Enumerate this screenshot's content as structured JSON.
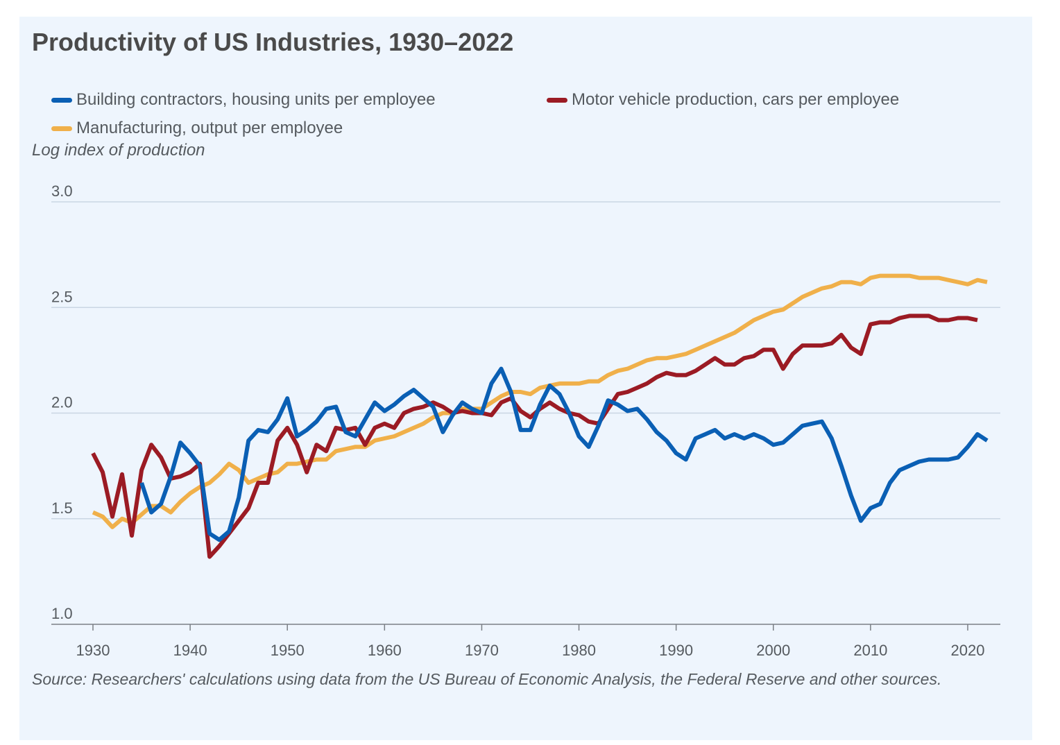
{
  "chart_data": {
    "type": "line",
    "title": "Productivity of US Industries, 1930–2022",
    "ylabel": "Log index of production",
    "xlabel": "",
    "source": "Source: Researchers' calculations using data from the US Bureau of Economic Analysis, the Federal Reserve and other sources.",
    "xlim": [
      1930,
      2022
    ],
    "ylim": [
      1.0,
      3.0
    ],
    "x_ticks": [
      1930,
      1940,
      1950,
      1960,
      1970,
      1980,
      1990,
      2000,
      2010,
      2020
    ],
    "x_tick_labels": [
      "1930",
      "1940",
      "1950",
      "1960",
      "1970",
      "1980",
      "1990",
      "2000",
      "2010",
      "2020"
    ],
    "y_ticks": [
      1.0,
      1.5,
      2.0,
      2.5,
      3.0
    ],
    "y_tick_labels": [
      "1.0",
      "1.5",
      "2.0",
      "2.5",
      "3.0"
    ],
    "grid": "horizontal",
    "legend_position": "top",
    "series": [
      {
        "name": "Building contractors, housing units per employee",
        "color": "#0a5fb4",
        "x": [
          1935,
          1936,
          1937,
          1938,
          1939,
          1940,
          1941,
          1942,
          1943,
          1944,
          1945,
          1946,
          1947,
          1948,
          1949,
          1950,
          1951,
          1952,
          1953,
          1954,
          1955,
          1956,
          1957,
          1958,
          1959,
          1960,
          1961,
          1962,
          1963,
          1964,
          1965,
          1966,
          1967,
          1968,
          1969,
          1970,
          1971,
          1972,
          1973,
          1974,
          1975,
          1976,
          1977,
          1978,
          1979,
          1980,
          1981,
          1982,
          1983,
          1984,
          1985,
          1986,
          1987,
          1988,
          1989,
          1990,
          1991,
          1992,
          1993,
          1994,
          1995,
          1996,
          1997,
          1998,
          1999,
          2000,
          2001,
          2002,
          2003,
          2004,
          2005,
          2006,
          2007,
          2008,
          2009,
          2010,
          2011,
          2012,
          2013,
          2014,
          2015,
          2016,
          2017,
          2018,
          2019,
          2020,
          2021,
          2022
        ],
        "y": [
          1.67,
          1.53,
          1.57,
          1.7,
          1.86,
          1.81,
          1.75,
          1.43,
          1.4,
          1.44,
          1.6,
          1.87,
          1.92,
          1.91,
          1.97,
          2.07,
          1.89,
          1.92,
          1.96,
          2.02,
          2.03,
          1.91,
          1.89,
          1.97,
          2.05,
          2.01,
          2.04,
          2.08,
          2.11,
          2.07,
          2.03,
          1.91,
          1.99,
          2.05,
          2.02,
          2.0,
          2.14,
          2.21,
          2.1,
          1.92,
          1.92,
          2.04,
          2.13,
          2.09,
          2.0,
          1.89,
          1.84,
          1.94,
          2.06,
          2.04,
          2.01,
          2.02,
          1.97,
          1.91,
          1.87,
          1.81,
          1.78,
          1.88,
          1.9,
          1.92,
          1.88,
          1.9,
          1.88,
          1.9,
          1.88,
          1.85,
          1.86,
          1.9,
          1.94,
          1.95,
          1.96,
          1.88,
          1.75,
          1.61,
          1.49,
          1.55,
          1.57,
          1.67,
          1.73,
          1.75,
          1.77,
          1.78,
          1.78,
          1.78,
          1.79,
          1.84,
          1.9,
          1.87
        ]
      },
      {
        "name": "Motor vehicle production, cars per employee",
        "color": "#9b1b24",
        "x": [
          1930,
          1931,
          1932,
          1933,
          1934,
          1935,
          1936,
          1937,
          1938,
          1939,
          1940,
          1941,
          1942,
          1943,
          1944,
          1945,
          1946,
          1947,
          1948,
          1949,
          1950,
          1951,
          1952,
          1953,
          1954,
          1955,
          1956,
          1957,
          1958,
          1959,
          1960,
          1961,
          1962,
          1963,
          1964,
          1965,
          1966,
          1967,
          1968,
          1969,
          1970,
          1971,
          1972,
          1973,
          1974,
          1975,
          1976,
          1977,
          1978,
          1979,
          1980,
          1981,
          1982,
          1983,
          1984,
          1985,
          1986,
          1987,
          1988,
          1989,
          1990,
          1991,
          1992,
          1993,
          1994,
          1995,
          1996,
          1997,
          1998,
          1999,
          2000,
          2001,
          2002,
          2003,
          2004,
          2005,
          2006,
          2007,
          2008,
          2009,
          2010,
          2011,
          2012,
          2013,
          2014,
          2015,
          2016,
          2017,
          2018,
          2019,
          2020,
          2021
        ],
        "y": [
          1.81,
          1.72,
          1.51,
          1.71,
          1.42,
          1.73,
          1.85,
          1.79,
          1.69,
          1.7,
          1.72,
          1.76,
          1.32,
          1.37,
          1.43,
          1.49,
          1.55,
          1.67,
          1.67,
          1.87,
          1.93,
          1.85,
          1.72,
          1.85,
          1.82,
          1.93,
          1.92,
          1.93,
          1.85,
          1.93,
          1.95,
          1.93,
          2.0,
          2.02,
          2.03,
          2.05,
          2.03,
          2.0,
          2.01,
          2.0,
          2.0,
          1.99,
          2.05,
          2.07,
          2.01,
          1.98,
          2.02,
          2.05,
          2.02,
          2.0,
          1.99,
          1.96,
          1.95,
          2.02,
          2.09,
          2.1,
          2.12,
          2.14,
          2.17,
          2.19,
          2.18,
          2.18,
          2.2,
          2.23,
          2.26,
          2.23,
          2.23,
          2.26,
          2.27,
          2.3,
          2.3,
          2.21,
          2.28,
          2.32,
          2.32,
          2.32,
          2.33,
          2.37,
          2.31,
          2.28,
          2.42,
          2.43,
          2.43,
          2.45,
          2.46,
          2.46,
          2.46,
          2.44,
          2.44,
          2.45,
          2.45,
          2.44
        ]
      },
      {
        "name": "Manufacturing, output per employee",
        "color": "#f0b04a",
        "x": [
          1930,
          1931,
          1932,
          1933,
          1934,
          1935,
          1936,
          1937,
          1938,
          1939,
          1940,
          1941,
          1942,
          1943,
          1944,
          1945,
          1946,
          1947,
          1948,
          1949,
          1950,
          1951,
          1952,
          1953,
          1954,
          1955,
          1956,
          1957,
          1958,
          1959,
          1960,
          1961,
          1962,
          1963,
          1964,
          1965,
          1966,
          1967,
          1968,
          1969,
          1970,
          1971,
          1972,
          1973,
          1974,
          1975,
          1976,
          1977,
          1978,
          1979,
          1980,
          1981,
          1982,
          1983,
          1984,
          1985,
          1986,
          1987,
          1988,
          1989,
          1990,
          1991,
          1992,
          1993,
          1994,
          1995,
          1996,
          1997,
          1998,
          1999,
          2000,
          2001,
          2002,
          2003,
          2004,
          2005,
          2006,
          2007,
          2008,
          2009,
          2010,
          2011,
          2012,
          2013,
          2014,
          2015,
          2016,
          2017,
          2018,
          2019,
          2020,
          2021,
          2022
        ],
        "y": [
          1.53,
          1.51,
          1.46,
          1.5,
          1.48,
          1.52,
          1.56,
          1.56,
          1.53,
          1.58,
          1.62,
          1.65,
          1.67,
          1.71,
          1.76,
          1.73,
          1.67,
          1.69,
          1.71,
          1.72,
          1.76,
          1.76,
          1.77,
          1.78,
          1.78,
          1.82,
          1.83,
          1.84,
          1.84,
          1.87,
          1.88,
          1.89,
          1.91,
          1.93,
          1.95,
          1.98,
          2.0,
          2.0,
          2.02,
          2.02,
          2.02,
          2.05,
          2.08,
          2.1,
          2.1,
          2.09,
          2.12,
          2.13,
          2.14,
          2.14,
          2.14,
          2.15,
          2.15,
          2.18,
          2.2,
          2.21,
          2.23,
          2.25,
          2.26,
          2.26,
          2.27,
          2.28,
          2.3,
          2.32,
          2.34,
          2.36,
          2.38,
          2.41,
          2.44,
          2.46,
          2.48,
          2.49,
          2.52,
          2.55,
          2.57,
          2.59,
          2.6,
          2.62,
          2.62,
          2.61,
          2.64,
          2.65,
          2.65,
          2.65,
          2.65,
          2.64,
          2.64,
          2.64,
          2.63,
          2.62,
          2.61,
          2.63,
          2.62
        ]
      }
    ]
  }
}
